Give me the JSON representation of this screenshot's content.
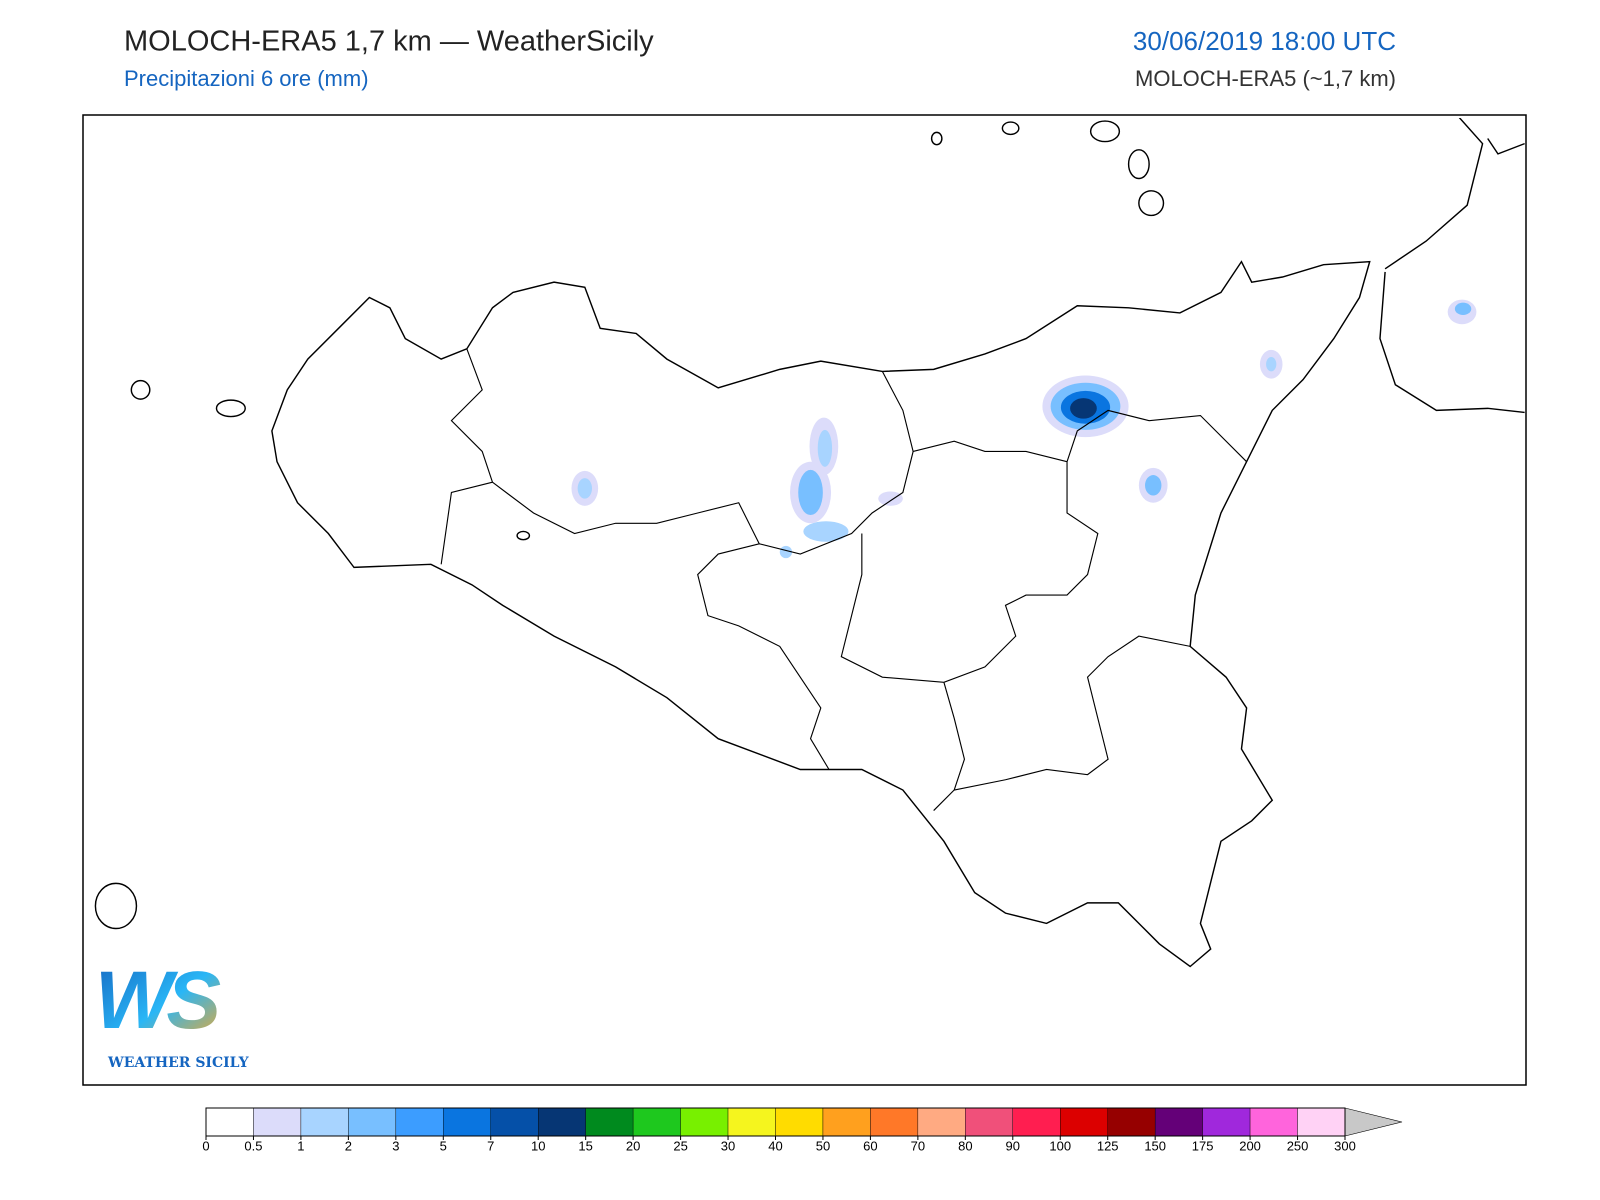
{
  "header": {
    "title": "MOLOCH-ERA5 1,7 km — WeatherSicily",
    "subtitle": "Precipitazioni 6 ore (mm)",
    "date": "30/06/2019 18:00 UTC",
    "model": "MOLOCH-ERA5 (~1,7 km)"
  },
  "colorbar": {
    "ticks": [
      0,
      0.5,
      1,
      2,
      3,
      5,
      7,
      10,
      15,
      20,
      25,
      30,
      40,
      50,
      60,
      70,
      80,
      90,
      100,
      125,
      150,
      175,
      200,
      250,
      300
    ],
    "colors": [
      "#ffffff",
      "#dcdcfa",
      "#a8d4ff",
      "#78bfff",
      "#3c9dff",
      "#0a75e0",
      "#0550a8",
      "#063674",
      "#008a1e",
      "#1ec81e",
      "#78f000",
      "#f5f51e",
      "#ffdc00",
      "#ffa01e",
      "#ff7828",
      "#ffaa82",
      "#f0507a",
      "#ff1e50",
      "#dc0000",
      "#960000",
      "#640078",
      "#a028dc",
      "#ff64dc",
      "#ffd2f5"
    ],
    "extend_color": "#c8c8c8"
  },
  "logo": {
    "initials": "WS",
    "name": "WEATHER SICILY"
  }
}
